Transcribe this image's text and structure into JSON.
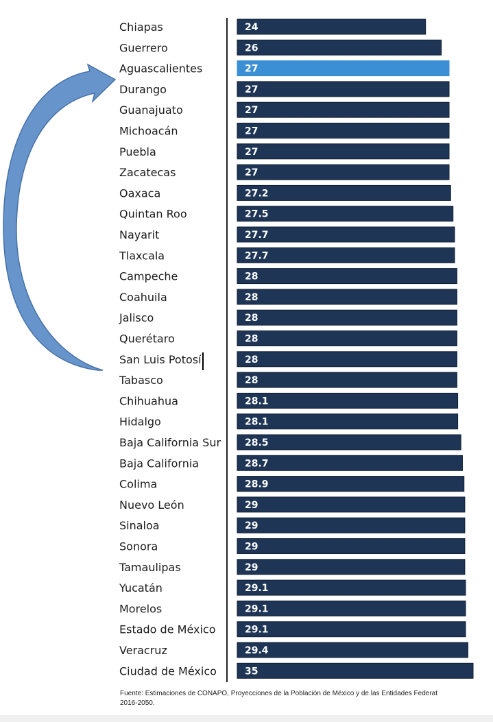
{
  "chart_data": {
    "type": "bar",
    "orientation": "horizontal",
    "categories": [
      "Chiapas",
      "Guerrero",
      "Aguascalientes",
      "Durango",
      "Guanajuato",
      "Michoacán",
      "Puebla",
      "Zacatecas",
      "Oaxaca",
      "Quintan Roo",
      "Nayarit",
      "Tlaxcala",
      "Campeche",
      "Coahuila",
      "Jalisco",
      "Querétaro",
      "San Luis Potosí",
      "Tabasco",
      "Chihuahua",
      "Hidalgo",
      "Baja California Sur",
      "Baja California",
      "Colima",
      "Nuevo León",
      "Sinaloa",
      "Sonora",
      "Tamaulipas",
      "Yucatán",
      "Morelos",
      "Estado de México",
      "Veracruz",
      "Ciudad de México"
    ],
    "values": [
      24,
      26,
      27,
      27,
      27,
      27,
      27,
      27,
      27.2,
      27.5,
      27.7,
      27.7,
      28,
      28,
      28,
      28,
      28,
      28,
      28.1,
      28.1,
      28.5,
      28.7,
      28.9,
      29,
      29,
      29,
      29,
      29.1,
      29.1,
      29.1,
      29.4,
      35
    ],
    "value_labels": [
      "24",
      "26",
      "27",
      "27",
      "27",
      "27",
      "27",
      "27",
      "27.2",
      "27.5",
      "27.7",
      "27.7",
      "28",
      "28",
      "28",
      "28",
      "28",
      "28",
      "28.1",
      "28.1",
      "28.5",
      "28.7",
      "28.9",
      "29",
      "29",
      "29",
      "29",
      "29.1",
      "29.1",
      "29.1",
      "29.4",
      "35"
    ],
    "highlight": "Aguascalientes",
    "annotation": "curved arrow from San Luis Potosí pointing up to Durango",
    "xlim": [
      0,
      30
    ],
    "grid": false,
    "legend": "none"
  },
  "colors": {
    "bar": "#1e3556",
    "bar_border": "#0f1e33",
    "highlight": "#3b8fd4",
    "arrow": "#5f8fc9",
    "arrow_edge": "#3d6aa3",
    "axis": "#222222"
  },
  "source": {
    "line1": "Fuente: Estimaciones de CONAPO, Proyecciones de la Población de México y de las Entidades Federat",
    "line2": "2016-2050."
  }
}
